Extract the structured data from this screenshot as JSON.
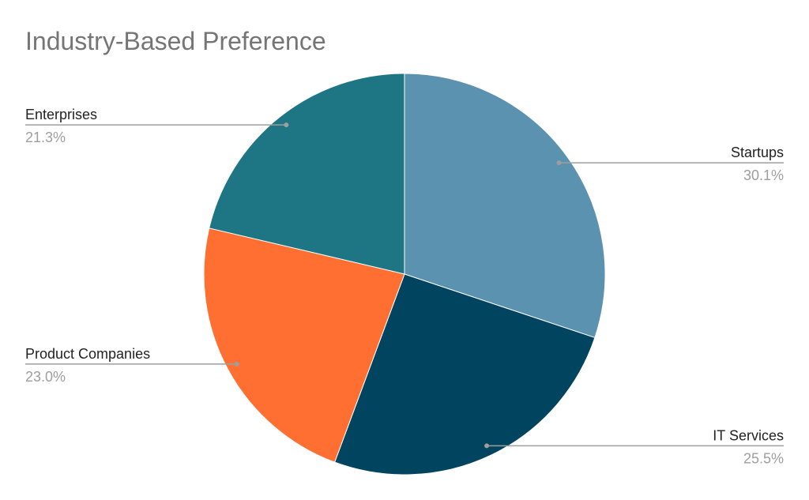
{
  "chart_data": {
    "type": "pie",
    "title": "Industry-Based Preference",
    "categories": [
      "Startups",
      "IT Services",
      "Product Companies",
      "Enterprises"
    ],
    "values": [
      30.1,
      25.5,
      23.0,
      21.3
    ],
    "value_labels": [
      "30.1%",
      "25.5%",
      "23.0%",
      "21.3%"
    ],
    "colors": [
      "#5a92b0",
      "#01445f",
      "#ff6f31",
      "#1e7584"
    ]
  }
}
